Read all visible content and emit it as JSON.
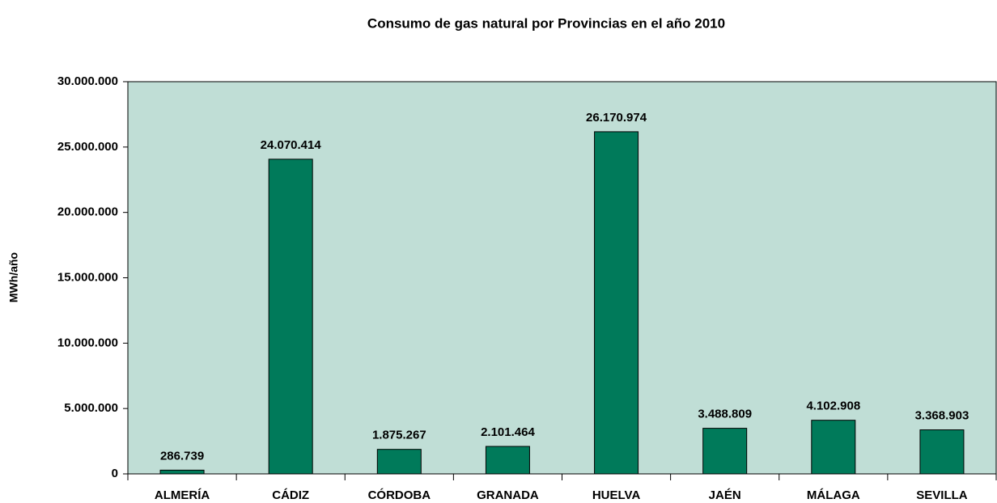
{
  "chart_data": {
    "type": "bar",
    "title": "Consumo de gas natural por Provincias en el año 2010",
    "y_label": "MWh/año",
    "categories": [
      "ALMERÍA",
      "CÁDIZ",
      "CÓRDOBA",
      "GRANADA",
      "HUELVA",
      "JAÉN",
      "MÁLAGA",
      "SEVILLA"
    ],
    "values": [
      286739,
      24070414,
      1875267,
      2101464,
      26170974,
      3488809,
      4102908,
      3368903
    ],
    "value_labels": [
      "286.739",
      "24.070.414",
      "1.875.267",
      "2.101.464",
      "26.170.974",
      "3.488.809",
      "4.102.908",
      "3.368.903"
    ],
    "color": "#007a5a",
    "plot_background": "#c0ded6",
    "ylim": [
      0,
      30000000
    ],
    "yticks": [
      0,
      {
        "value": 5000000,
        "label": "5.000.000"
      },
      {
        "value": 10000000,
        "label": "10.000.000"
      },
      {
        "value": 15000000,
        "label": "15.000.000"
      },
      {
        "value": 20000000,
        "label": "20.000.000"
      },
      {
        "value": 25000000,
        "label": "25.000.000"
      },
      {
        "value": 30000000,
        "label": "30.000.000"
      }
    ],
    "grid": false
  }
}
